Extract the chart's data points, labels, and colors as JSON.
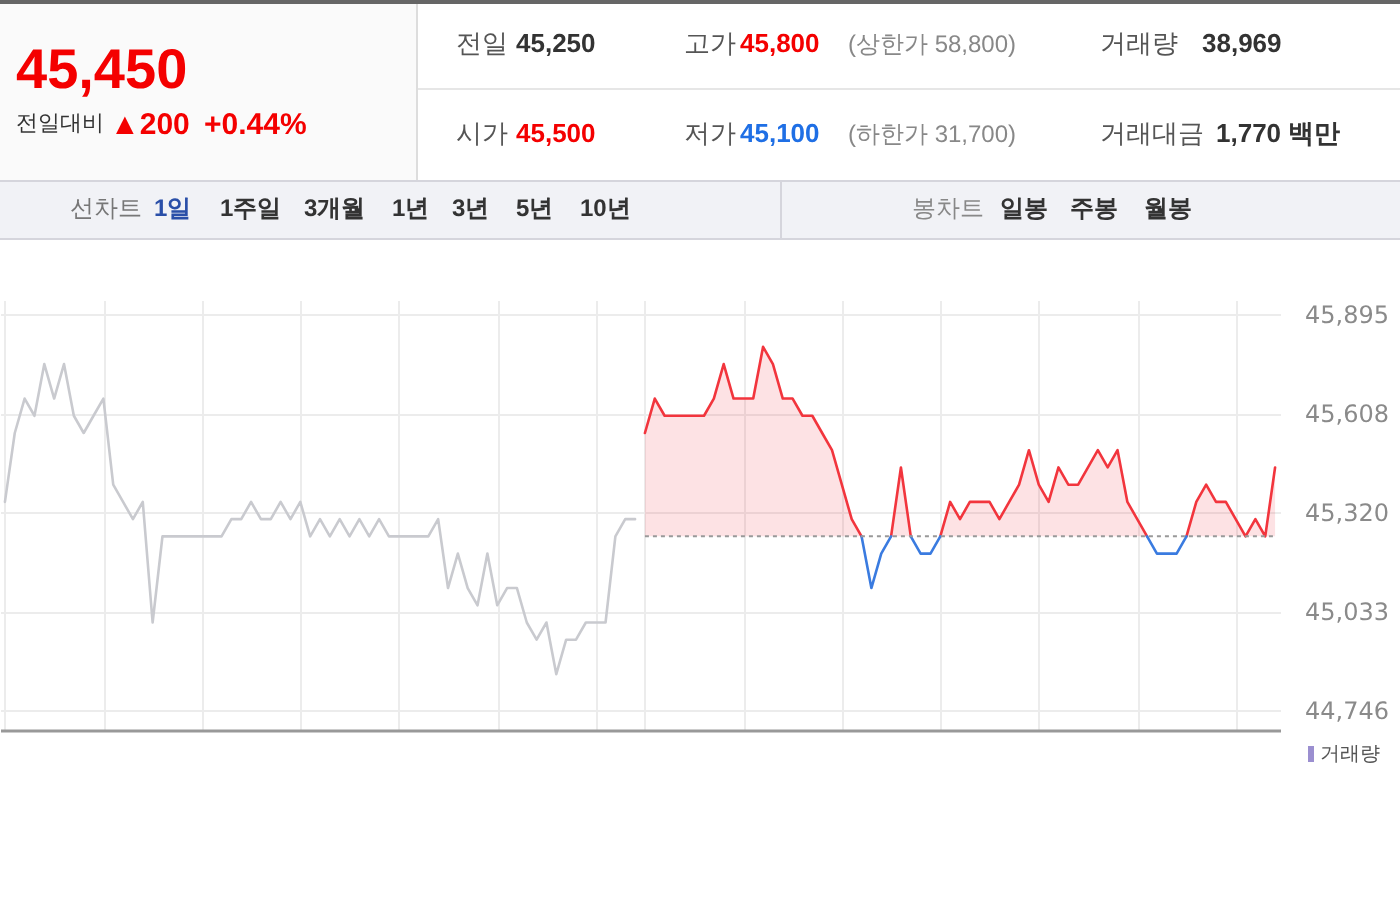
{
  "chart_data": [
    {
      "type": "other",
      "annotations": [
        "45,450",
        "전일대비",
        "▲200",
        "+0.44%",
        "전일",
        "45,250",
        "고가",
        "45,800",
        "(상한가 58,800)",
        "거래량",
        "38,969",
        "시가",
        "45,500",
        "저가",
        "45,100",
        "(하한가 31,700)",
        "거래대금",
        "1,770 백만",
        "선차트",
        "1일",
        "1주일",
        "3개월",
        "1년",
        "3년",
        "5년",
        "10년",
        "봉차트",
        "일봉",
        "주봉",
        "월봉"
      ]
    },
    {
      "type": "line",
      "categories": [
        null,
        null,
        null,
        null,
        null,
        null,
        null,
        null,
        null,
        null,
        null,
        null,
        null,
        null,
        null,
        null,
        null,
        null,
        null,
        null,
        null,
        null,
        null,
        null,
        null,
        null,
        null,
        null,
        null,
        null,
        null,
        null,
        null,
        null,
        null,
        null,
        null,
        null,
        null,
        null,
        null,
        null,
        null,
        null,
        null,
        null,
        null,
        null,
        null,
        null,
        null,
        null,
        null,
        null,
        null,
        null,
        null,
        null,
        null,
        null,
        null,
        null,
        null,
        null,
        null,
        null,
        null,
        null,
        null,
        null,
        null,
        null,
        null,
        null,
        null,
        null,
        null,
        null,
        null,
        null,
        null,
        null,
        null,
        null,
        null,
        null,
        null,
        null,
        null,
        null,
        null,
        null,
        null,
        null,
        null,
        null,
        null,
        null,
        null,
        null,
        null,
        null,
        null,
        null,
        null,
        null,
        null,
        null,
        null,
        null,
        null,
        null,
        null,
        null,
        null,
        null,
        null,
        null,
        null,
        null,
        null,
        null,
        null,
        null,
        null,
        null,
        null,
        null,
        null,
        null
      ],
      "series": [
        {
          "type": "line",
          "color": "#c9cacf",
          "values": [
            45350,
            45550,
            45650,
            45600,
            45750,
            45650,
            45750,
            45600,
            45550,
            45600,
            45650,
            45400,
            45350,
            45300,
            45350,
            45000,
            45250,
            45250,
            45250,
            45250,
            45250,
            45250,
            45250,
            45300,
            45300,
            45350,
            45300,
            45300,
            45350,
            45300,
            45350,
            45250,
            45300,
            45250,
            45300,
            45250,
            45300,
            45250,
            45300,
            45250,
            45250,
            45250,
            45250,
            45250,
            45300,
            45100,
            45200,
            45100,
            45050,
            45200,
            45050,
            45100,
            45100,
            45000,
            44950,
            45000,
            44850,
            44950,
            44950,
            45000,
            45000,
            45000,
            45250,
            45300,
            45300,
            null,
            null,
            null,
            null,
            null,
            null,
            null,
            null,
            null,
            null,
            null,
            null,
            null,
            null,
            null,
            null,
            null,
            null,
            null,
            null,
            null,
            null,
            null,
            null,
            null,
            null,
            null,
            null,
            null,
            null,
            null,
            null,
            null,
            null,
            null,
            null,
            null,
            null,
            null,
            null,
            null,
            null,
            null,
            null,
            null,
            null,
            null,
            null,
            null,
            null,
            null,
            null,
            null,
            null,
            null,
            null,
            null,
            null,
            null,
            null,
            null,
            null,
            null,
            null,
            null
          ]
        },
        {
          "type": "area",
          "color": "#f2353d",
          "values": [
            null,
            null,
            null,
            null,
            null,
            null,
            null,
            null,
            null,
            null,
            null,
            null,
            null,
            null,
            null,
            null,
            null,
            null,
            null,
            null,
            null,
            null,
            null,
            null,
            null,
            null,
            null,
            null,
            null,
            null,
            null,
            null,
            null,
            null,
            null,
            null,
            null,
            null,
            null,
            null,
            null,
            null,
            null,
            null,
            null,
            null,
            null,
            null,
            null,
            null,
            null,
            null,
            null,
            null,
            null,
            null,
            null,
            null,
            null,
            null,
            null,
            null,
            null,
            null,
            null,
            45550,
            45650,
            45600,
            45600,
            45600,
            45600,
            45600,
            45650,
            45750,
            45650,
            45650,
            45650,
            45800,
            45750,
            45650,
            45650,
            45600,
            45600,
            45550,
            45500,
            45400,
            45300,
            45250,
            null,
            null,
            45250,
            45450,
            45250,
            null,
            null,
            45250,
            45350,
            45300,
            45350,
            45350,
            45350,
            45300,
            45350,
            45400,
            45500,
            45400,
            45350,
            45450,
            45400,
            45400,
            45450,
            45500,
            45450,
            45500,
            45350,
            45300,
            45250,
            null,
            null,
            null,
            45250,
            45350,
            45400,
            45350,
            45350,
            45300,
            45250,
            45300,
            45250,
            45450
          ]
        },
        {
          "type": "line",
          "color": "#3a7be0",
          "values": [
            null,
            null,
            null,
            null,
            null,
            null,
            null,
            null,
            null,
            null,
            null,
            null,
            null,
            null,
            null,
            null,
            null,
            null,
            null,
            null,
            null,
            null,
            null,
            null,
            null,
            null,
            null,
            null,
            null,
            null,
            null,
            null,
            null,
            null,
            null,
            null,
            null,
            null,
            null,
            null,
            null,
            null,
            null,
            null,
            null,
            null,
            null,
            null,
            null,
            null,
            null,
            null,
            null,
            null,
            null,
            null,
            null,
            null,
            null,
            null,
            null,
            null,
            null,
            null,
            null,
            null,
            null,
            null,
            null,
            null,
            null,
            null,
            null,
            null,
            null,
            null,
            null,
            null,
            null,
            null,
            null,
            null,
            null,
            null,
            null,
            null,
            null,
            45250,
            45100,
            45200,
            45250,
            null,
            45250,
            45200,
            45200,
            45250,
            null,
            null,
            null,
            null,
            null,
            null,
            null,
            null,
            null,
            null,
            null,
            null,
            null,
            null,
            null,
            null,
            null,
            null,
            null,
            null,
            45250,
            45200,
            45200,
            45200,
            45250,
            null,
            null,
            null,
            null,
            null,
            null,
            null,
            null,
            null
          ]
        }
      ],
      "ylim": [
        44688,
        45936
      ],
      "yticks": [
        {
          "value": 44746,
          "label": "44,746"
        },
        {
          "value": 45033,
          "label": "45,033"
        },
        {
          "value": 45320,
          "label": "45,320"
        },
        {
          "value": 45608,
          "label": "45,608"
        },
        {
          "value": 45895,
          "label": "45,895"
        }
      ],
      "ref_lines": [
        {
          "axis": "y",
          "value": 45250,
          "color": "#999999",
          "line_style": "dotted"
        }
      ],
      "grid": true,
      "tick_labels": "y",
      "line_style": "solid",
      "annotations": [
        "거래량"
      ]
    }
  ]
}
